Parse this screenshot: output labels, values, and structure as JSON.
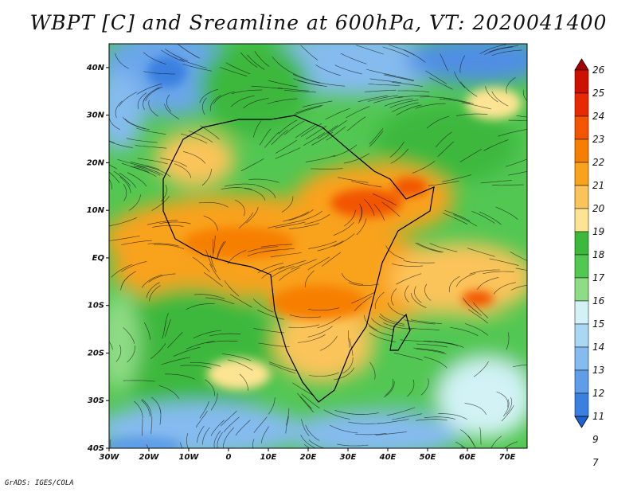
{
  "title": "WBPT [C] and Sreamline at 600hPa, VT: 2020041400",
  "footer": "GrADS: IGES/COLA",
  "map": {
    "lat_ticks": [
      "40N",
      "30N",
      "20N",
      "10N",
      "EQ",
      "10S",
      "20S",
      "30S",
      "40S"
    ],
    "lon_ticks": [
      "30W",
      "20W",
      "10W",
      "0",
      "10E",
      "20E",
      "30E",
      "40E",
      "50E",
      "60E",
      "70E"
    ],
    "lon_range": [
      -30,
      75
    ],
    "lat_range": [
      -40,
      45
    ]
  },
  "colorbar": {
    "labels": [
      "26",
      "25",
      "24",
      "23",
      "22",
      "21",
      "20",
      "19",
      "18",
      "17",
      "16",
      "15",
      "14",
      "13",
      "12",
      "11",
      "9",
      "7"
    ],
    "colors": [
      "#a50000",
      "#cc1100",
      "#e82a00",
      "#f25400",
      "#f77f00",
      "#f9a21c",
      "#fbc45a",
      "#fde493",
      "#3cb83c",
      "#52c752",
      "#8fdc86",
      "#d2f2f5",
      "#a9d7f4",
      "#85bbef",
      "#5f9de8",
      "#3b80e0",
      "#1c62d2"
    ]
  }
}
